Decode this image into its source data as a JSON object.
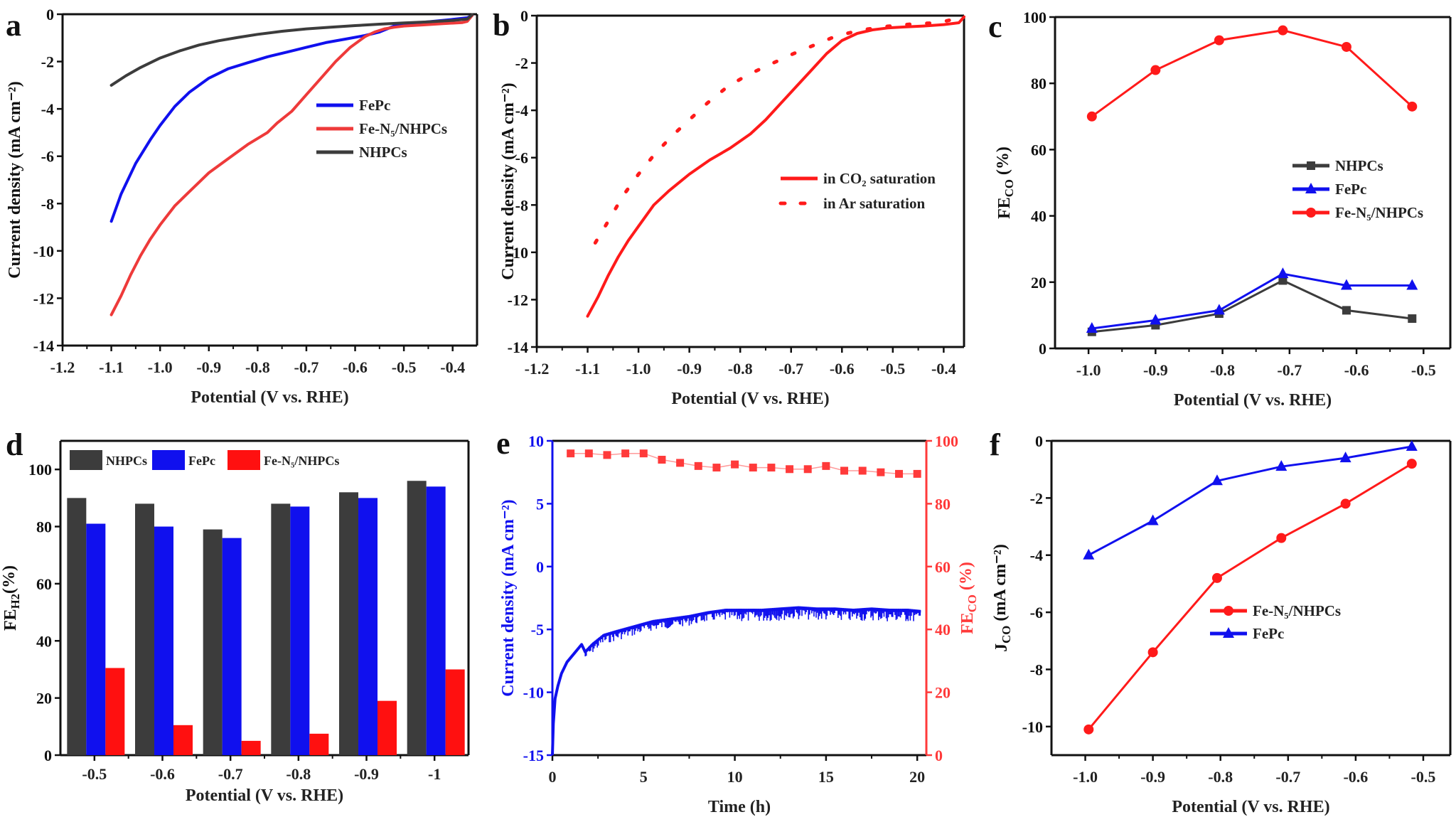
{
  "figure": {
    "colors": {
      "red": "#ff2020",
      "blue": "#1010ee",
      "dark": "#3c3c3c",
      "ar": "#ee2a2a",
      "fe_light": "#ff8080"
    }
  },
  "chart_data": [
    {
      "id": "a",
      "panel_label": "a",
      "type": "line",
      "xlabel": "Potential (V vs. RHE)",
      "ylabel": "Current density (mA cm⁻²)",
      "xlim": [
        -1.2,
        -0.35
      ],
      "ylim": [
        -14,
        0
      ],
      "xticks": [
        -1.2,
        -1.1,
        -1.0,
        -0.9,
        -0.8,
        -0.7,
        -0.6,
        -0.5,
        -0.4
      ],
      "xtick_labels": [
        "-1.2",
        "-1.1",
        "-1.0",
        "-0.9",
        "-0.8",
        "-0.7",
        "-0.6",
        "-0.5",
        "-0.4"
      ],
      "yticks": [
        0,
        -2,
        -4,
        -6,
        -8,
        -10,
        -12,
        -14
      ],
      "ytick_labels": [
        "0",
        "-2",
        "-4",
        "-6",
        "-8",
        "-10",
        "-12",
        "-14"
      ],
      "grid": false,
      "legend_position": "center-right",
      "series": [
        {
          "name": "FePc",
          "color": "#1010ee",
          "x": [
            -1.1,
            -1.08,
            -1.05,
            -1.02,
            -1.0,
            -0.97,
            -0.94,
            -0.9,
            -0.86,
            -0.82,
            -0.78,
            -0.74,
            -0.7,
            -0.66,
            -0.62,
            -0.58,
            -0.55,
            -0.52,
            -0.48,
            -0.44,
            -0.4,
            -0.37,
            -0.36
          ],
          "y": [
            -8.75,
            -7.6,
            -6.3,
            -5.3,
            -4.7,
            -3.9,
            -3.3,
            -2.7,
            -2.3,
            -2.05,
            -1.8,
            -1.6,
            -1.4,
            -1.2,
            -1.05,
            -0.9,
            -0.75,
            -0.5,
            -0.38,
            -0.3,
            -0.22,
            -0.15,
            -0.05
          ]
        },
        {
          "name": "Fe-N₅/NHPCs",
          "color": "#ee3a3a",
          "x": [
            -1.1,
            -1.08,
            -1.06,
            -1.04,
            -1.02,
            -1.0,
            -0.97,
            -0.94,
            -0.9,
            -0.86,
            -0.82,
            -0.78,
            -0.76,
            -0.73,
            -0.7,
            -0.67,
            -0.64,
            -0.61,
            -0.58,
            -0.56,
            -0.54,
            -0.52,
            -0.5,
            -0.46,
            -0.42,
            -0.38,
            -0.37,
            -0.36
          ],
          "y": [
            -12.7,
            -11.9,
            -11.0,
            -10.2,
            -9.5,
            -8.9,
            -8.1,
            -7.5,
            -6.7,
            -6.1,
            -5.5,
            -5.0,
            -4.6,
            -4.1,
            -3.4,
            -2.7,
            -2.0,
            -1.4,
            -0.95,
            -0.75,
            -0.62,
            -0.55,
            -0.5,
            -0.45,
            -0.4,
            -0.35,
            -0.3,
            -0.05
          ]
        },
        {
          "name": "NHPCs",
          "color": "#3c3c3c",
          "x": [
            -1.1,
            -1.07,
            -1.04,
            -1.0,
            -0.96,
            -0.92,
            -0.88,
            -0.84,
            -0.8,
            -0.75,
            -0.7,
            -0.65,
            -0.6,
            -0.55,
            -0.5,
            -0.45,
            -0.4,
            -0.37,
            -0.36
          ],
          "y": [
            -3.0,
            -2.6,
            -2.25,
            -1.85,
            -1.55,
            -1.3,
            -1.12,
            -0.98,
            -0.85,
            -0.72,
            -0.62,
            -0.55,
            -0.48,
            -0.42,
            -0.37,
            -0.32,
            -0.26,
            -0.2,
            -0.02
          ]
        }
      ],
      "legend": [
        "FePc",
        "Fe-N₅/NHPCs",
        "NHPCs"
      ]
    },
    {
      "id": "b",
      "panel_label": "b",
      "type": "line",
      "xlabel": "Potential (V vs. RHE)",
      "ylabel": "Current density (mA cm⁻²)",
      "xlim": [
        -1.2,
        -0.36
      ],
      "ylim": [
        -14,
        0
      ],
      "xticks": [
        -1.2,
        -1.1,
        -1.0,
        -0.9,
        -0.8,
        -0.7,
        -0.6,
        -0.5,
        -0.4
      ],
      "xtick_labels": [
        "-1.2",
        "-1.1",
        "-1.0",
        "-0.9",
        "-0.8",
        "-0.7",
        "-0.6",
        "-0.5",
        "-0.4"
      ],
      "yticks": [
        0,
        -2,
        -4,
        -6,
        -8,
        -10,
        -12,
        -14
      ],
      "ytick_labels": [
        "0",
        "-2",
        "-4",
        "-6",
        "-8",
        "-10",
        "-12",
        "-14"
      ],
      "grid": false,
      "legend_position": "center-right",
      "series": [
        {
          "name": "in CO₂ saturation",
          "color": "#ff1a1a",
          "style": "solid",
          "x": [
            -1.1,
            -1.08,
            -1.06,
            -1.04,
            -1.02,
            -1.0,
            -0.97,
            -0.94,
            -0.9,
            -0.86,
            -0.82,
            -0.78,
            -0.75,
            -0.72,
            -0.69,
            -0.66,
            -0.63,
            -0.6,
            -0.57,
            -0.54,
            -0.51,
            -0.48,
            -0.44,
            -0.4,
            -0.37,
            -0.36
          ],
          "y": [
            -12.7,
            -11.9,
            -11.0,
            -10.2,
            -9.5,
            -8.9,
            -8.0,
            -7.4,
            -6.7,
            -6.1,
            -5.6,
            -5.0,
            -4.4,
            -3.7,
            -3.0,
            -2.3,
            -1.6,
            -1.05,
            -0.75,
            -0.6,
            -0.52,
            -0.48,
            -0.44,
            -0.38,
            -0.3,
            -0.05
          ]
        },
        {
          "name": "in Ar saturation",
          "color": "#ff1a1a",
          "style": "dotted",
          "x": [
            -1.085,
            -1.06,
            -1.03,
            -1.0,
            -0.97,
            -0.935,
            -0.9,
            -0.865,
            -0.825,
            -0.785,
            -0.745,
            -0.7,
            -0.655,
            -0.61,
            -0.56,
            -0.51,
            -0.46,
            -0.41,
            -0.37
          ],
          "y": [
            -9.6,
            -8.7,
            -7.6,
            -6.7,
            -5.9,
            -5.1,
            -4.4,
            -3.7,
            -3.0,
            -2.5,
            -2.1,
            -1.65,
            -1.25,
            -0.85,
            -0.6,
            -0.45,
            -0.35,
            -0.3,
            -0.1
          ]
        }
      ],
      "legend": [
        "in CO₂ saturation",
        "in Ar saturation"
      ]
    },
    {
      "id": "c",
      "panel_label": "c",
      "type": "line",
      "xlabel": "Potential (V  vs. RHE)",
      "ylabel": "FE_CO (%)",
      "xlim": [
        -1.05,
        -0.46
      ],
      "ylim": [
        0,
        100
      ],
      "xticks": [
        -1.0,
        -0.9,
        -0.8,
        -0.7,
        -0.6,
        -0.5
      ],
      "xtick_labels": [
        "-1.0",
        "-0.9",
        "-0.8",
        "-0.7",
        "-0.6",
        "-0.5"
      ],
      "yticks": [
        0,
        20,
        40,
        60,
        80,
        100
      ],
      "ytick_labels": [
        "0",
        "20",
        "40",
        "60",
        "80",
        "100"
      ],
      "grid": false,
      "legend_position": "center-right",
      "series": [
        {
          "name": "NHPCs",
          "color": "#3c3c3c",
          "marker": "square",
          "x": [
            -0.995,
            -0.9,
            -0.805,
            -0.71,
            -0.615,
            -0.517
          ],
          "y": [
            5,
            7,
            10.5,
            20.5,
            11.5,
            9
          ]
        },
        {
          "name": "FePc",
          "color": "#1010ee",
          "marker": "triangle",
          "x": [
            -0.995,
            -0.9,
            -0.805,
            -0.71,
            -0.615,
            -0.517
          ],
          "y": [
            6,
            8.5,
            11.5,
            22.5,
            19,
            19
          ]
        },
        {
          "name": "Fe-N₅/NHPCs",
          "color": "#ff1a1a",
          "marker": "circle",
          "x": [
            -0.995,
            -0.9,
            -0.805,
            -0.71,
            -0.615,
            -0.517
          ],
          "y": [
            70,
            84,
            93,
            96,
            91,
            73
          ]
        }
      ],
      "legend": [
        "NHPCs",
        "FePc",
        "Fe-N₅/NHPCs"
      ]
    },
    {
      "id": "d",
      "panel_label": "d",
      "type": "bar",
      "xlabel": "Potential (V vs. RHE)",
      "ylabel": "FE_H2(%)",
      "categories": [
        "-0.5",
        "-0.6",
        "-0.7",
        "-0.8",
        "-0.9",
        "-1"
      ],
      "ylim": [
        0,
        110
      ],
      "yticks": [
        0,
        20,
        40,
        60,
        80,
        100
      ],
      "ytick_labels": [
        "0",
        "20",
        "40",
        "60",
        "80",
        "100"
      ],
      "grid": false,
      "legend_position": "top-left",
      "series": [
        {
          "name": "NHPCs",
          "color": "#3c3c3c",
          "values": [
            90,
            88,
            79,
            88,
            92,
            96
          ]
        },
        {
          "name": "FePc",
          "color": "#1010ee",
          "values": [
            81,
            80,
            76,
            87,
            90,
            94
          ]
        },
        {
          "name": "Fe-N₅/NHPCs",
          "color": "#ff1010",
          "values": [
            30.5,
            10.5,
            5,
            7.5,
            19,
            30
          ]
        }
      ],
      "legend": [
        "NHPCs",
        "FePc",
        "Fe-N₅/NHPCs"
      ]
    },
    {
      "id": "e",
      "panel_label": "e",
      "type": "line",
      "xlabel": "Time (h)",
      "ylabel": "Current density (mA cm⁻²)",
      "ylabel_right": "FE_CO (%)",
      "xlim": [
        0,
        20.5
      ],
      "ylim": [
        -15,
        10
      ],
      "ylim_right": [
        0,
        100
      ],
      "xticks": [
        0,
        5,
        10,
        15,
        20
      ],
      "xtick_labels": [
        "0",
        "5",
        "10",
        "15",
        "20"
      ],
      "yticks": [
        10,
        5,
        0,
        -5,
        -10,
        -15
      ],
      "ytick_labels": [
        "10",
        "5",
        "0",
        "-5",
        "-10",
        "-15"
      ],
      "yticks_right": [
        100,
        80,
        60,
        40,
        20,
        0
      ],
      "ytick_labels_right": [
        "100",
        "80",
        "60",
        "40",
        "20",
        "0"
      ],
      "grid": false,
      "series": [
        {
          "name": "Current density",
          "axis": "left",
          "color": "#1010ee",
          "x": [
            0,
            0.05,
            0.15,
            0.3,
            0.5,
            0.8,
            1.2,
            1.6,
            1.8,
            2.2,
            2.8,
            3.5,
            4.5,
            5.5,
            6.5,
            7.5,
            8.5,
            9.5,
            10.5,
            11.5,
            12.5,
            13.5,
            14.5,
            15.5,
            16.5,
            17.5,
            18.5,
            19.5,
            20.2
          ],
          "y": [
            -15,
            -12.5,
            -10.5,
            -9.5,
            -8.5,
            -7.6,
            -6.9,
            -6.2,
            -6.8,
            -6.2,
            -5.5,
            -5.2,
            -4.8,
            -4.4,
            -4.2,
            -4.0,
            -3.7,
            -3.5,
            -3.5,
            -3.5,
            -3.4,
            -3.3,
            -3.4,
            -3.4,
            -3.5,
            -3.4,
            -3.5,
            -3.5,
            -3.6
          ]
        },
        {
          "name": "FE_CO",
          "axis": "right",
          "color": "#ff3a3a",
          "marker": "square",
          "x": [
            1,
            2,
            3,
            4,
            5,
            6,
            7,
            8,
            9,
            10,
            11,
            12,
            13,
            14,
            15,
            16,
            17,
            18,
            19,
            20
          ],
          "y": [
            96,
            96,
            95.5,
            96,
            96,
            94,
            93,
            92,
            91.5,
            92.5,
            91.5,
            91.5,
            91,
            91,
            92,
            90.5,
            90.5,
            90,
            89.5,
            89.5
          ]
        }
      ]
    },
    {
      "id": "f",
      "panel_label": "f",
      "type": "line",
      "xlabel": "Potential (V vs. RHE)",
      "ylabel": "J_CO (mA cm⁻²)",
      "xlim": [
        -1.05,
        -0.46
      ],
      "ylim": [
        -11,
        0
      ],
      "xticks": [
        -1.0,
        -0.9,
        -0.8,
        -0.7,
        -0.6,
        -0.5
      ],
      "xtick_labels": [
        "-1.0",
        "-0.9",
        "-0.8",
        "-0.7",
        "-0.6",
        "-0.5"
      ],
      "yticks": [
        0,
        -2,
        -4,
        -6,
        -8,
        -10
      ],
      "ytick_labels": [
        "0",
        "-2",
        "-4",
        "-6",
        "-8",
        "-10"
      ],
      "grid": false,
      "legend_position": "center-right",
      "series": [
        {
          "name": "Fe-N₅/NHPCs",
          "color": "#ff1a1a",
          "marker": "circle",
          "x": [
            -0.995,
            -0.9,
            -0.805,
            -0.71,
            -0.615,
            -0.517
          ],
          "y": [
            -10.1,
            -7.4,
            -4.8,
            -3.4,
            -2.2,
            -0.8
          ]
        },
        {
          "name": "FePc",
          "color": "#1010ee",
          "marker": "triangle",
          "x": [
            -0.995,
            -0.9,
            -0.805,
            -0.71,
            -0.615,
            -0.517
          ],
          "y": [
            -4.0,
            -2.8,
            -1.4,
            -0.9,
            -0.6,
            -0.2
          ]
        }
      ],
      "legend": [
        "Fe-N₅/NHPCs",
        "FePc"
      ]
    }
  ]
}
